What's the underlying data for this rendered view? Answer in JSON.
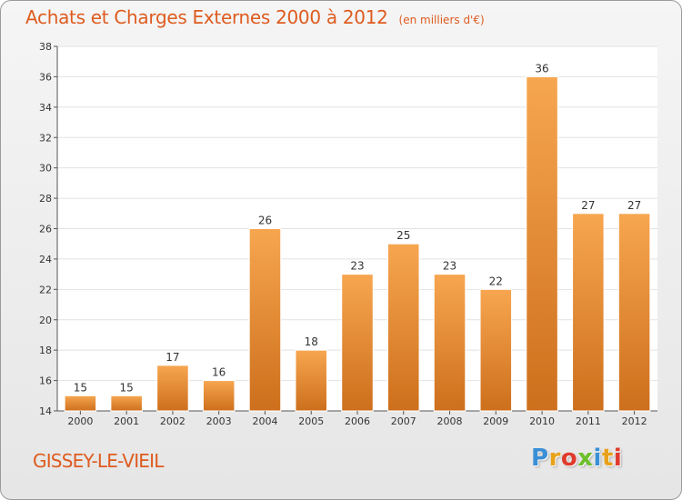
{
  "title": "Achats et Charges Externes 2000 à 2012",
  "subtitle": "(en milliers d'€)",
  "commune": "GISSEY-LE-VIEIL",
  "logo": {
    "letters": [
      "P",
      "r",
      "o",
      "x",
      "i",
      "t",
      "i"
    ],
    "colors": [
      "#3a8fd6",
      "#e8a21a",
      "#e03a2c",
      "#6cbf2a",
      "#3a8fd6",
      "#e8a21a",
      "#e03a2c"
    ]
  },
  "colors": {
    "title": "#de5b1f",
    "bar_light": "#f7a650",
    "bar_dark": "#cd6f1c"
  },
  "chart_data": {
    "type": "bar",
    "categories": [
      "2000",
      "2001",
      "2002",
      "2003",
      "2004",
      "2005",
      "2006",
      "2007",
      "2008",
      "2009",
      "2010",
      "2011",
      "2012"
    ],
    "values": [
      15,
      15,
      17,
      16,
      26,
      18,
      23,
      25,
      23,
      22,
      36,
      27,
      27
    ],
    "data_labels": [
      "15",
      "15",
      "17",
      "16",
      "26",
      "18",
      "23",
      "25",
      "23",
      "22",
      "36",
      "27",
      "27"
    ],
    "yticks": [
      14,
      16,
      18,
      20,
      22,
      24,
      26,
      28,
      30,
      32,
      34,
      36,
      38
    ],
    "ylim": [
      14,
      38
    ],
    "grid": true
  }
}
